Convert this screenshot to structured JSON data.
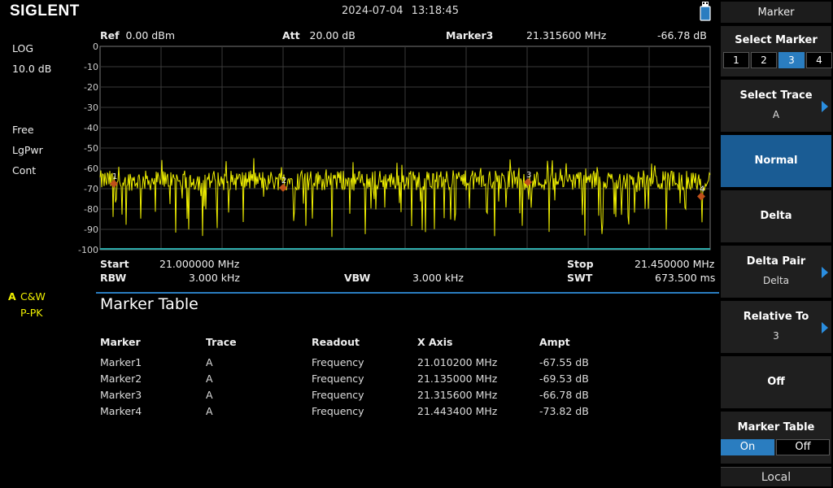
{
  "brand": "SIGLENT",
  "datetime": "2024-07-04   13:18:45",
  "left_panel": {
    "scale_type": "LOG",
    "scale_div": "10.0 dB",
    "trigger": "Free",
    "det": "LgPwr",
    "sweep": "Cont",
    "trace_letter": "A",
    "trace_mode": "C&W",
    "trace_det": "P-PK"
  },
  "header": {
    "ref_label": "Ref",
    "ref_value": "0.00 dBm",
    "att_label": "Att",
    "att_value": "20.00 dB",
    "marker_label": "Marker3",
    "marker_freq": "21.315600 MHz",
    "marker_ampt": "-66.78 dB"
  },
  "bottom": {
    "start_label": "Start",
    "start_value": "21.000000 MHz",
    "stop_label": "Stop",
    "stop_value": "21.450000 MHz",
    "rbw_label": "RBW",
    "rbw_value": "3.000 kHz",
    "vbw_label": "VBW",
    "vbw_value": "3.000 kHz",
    "swt_label": "SWT",
    "swt_value": "673.500 ms"
  },
  "chart_data": {
    "type": "line",
    "y_ticks": [
      "0",
      "-10",
      "-20",
      "-30",
      "-40",
      "-50",
      "-60",
      "-70",
      "-80",
      "-90",
      "-100"
    ],
    "ylim": [
      -100,
      0
    ],
    "xlim": [
      21.0,
      21.45
    ],
    "grid": true,
    "trace_color": "#f0f000",
    "noise_floor_db": -66,
    "markers": [
      {
        "label": "1",
        "x": 21.0102,
        "y": -67.55
      },
      {
        "label": "2",
        "x": 21.135,
        "y": -69.53
      },
      {
        "label": "3",
        "x": 21.3156,
        "y": -66.78
      },
      {
        "label": "4",
        "x": 21.4434,
        "y": -73.82
      }
    ]
  },
  "marker_table": {
    "title": "Marker Table",
    "columns": [
      "Marker",
      "Trace",
      "Readout",
      "X Axis",
      "Ampt"
    ],
    "rows": [
      [
        "Marker1",
        "A",
        "Frequency",
        "21.010200 MHz",
        "-67.55 dB"
      ],
      [
        "Marker2",
        "A",
        "Frequency",
        "21.135000 MHz",
        "-69.53 dB"
      ],
      [
        "Marker3",
        "A",
        "Frequency",
        "21.315600 MHz",
        "-66.78 dB"
      ],
      [
        "Marker4",
        "A",
        "Frequency",
        "21.443400 MHz",
        "-73.82 dB"
      ]
    ]
  },
  "menu": {
    "title": "Marker",
    "select_marker": "Select Marker",
    "markers": [
      "1",
      "2",
      "3",
      "4"
    ],
    "selected_marker": "3",
    "select_trace": "Select Trace",
    "select_trace_value": "A",
    "normal": "Normal",
    "delta": "Delta",
    "delta_pair": "Delta Pair",
    "delta_pair_value": "Delta",
    "relative_to": "Relative To",
    "relative_to_value": "3",
    "off": "Off",
    "marker_table": "Marker Table",
    "on_label": "On",
    "off_label": "Off",
    "local": "Local"
  },
  "colors": {
    "accent": "#2a7dc0",
    "trace": "#f0f000",
    "marker": "#c0501a",
    "trace_label": "#f0f000"
  }
}
